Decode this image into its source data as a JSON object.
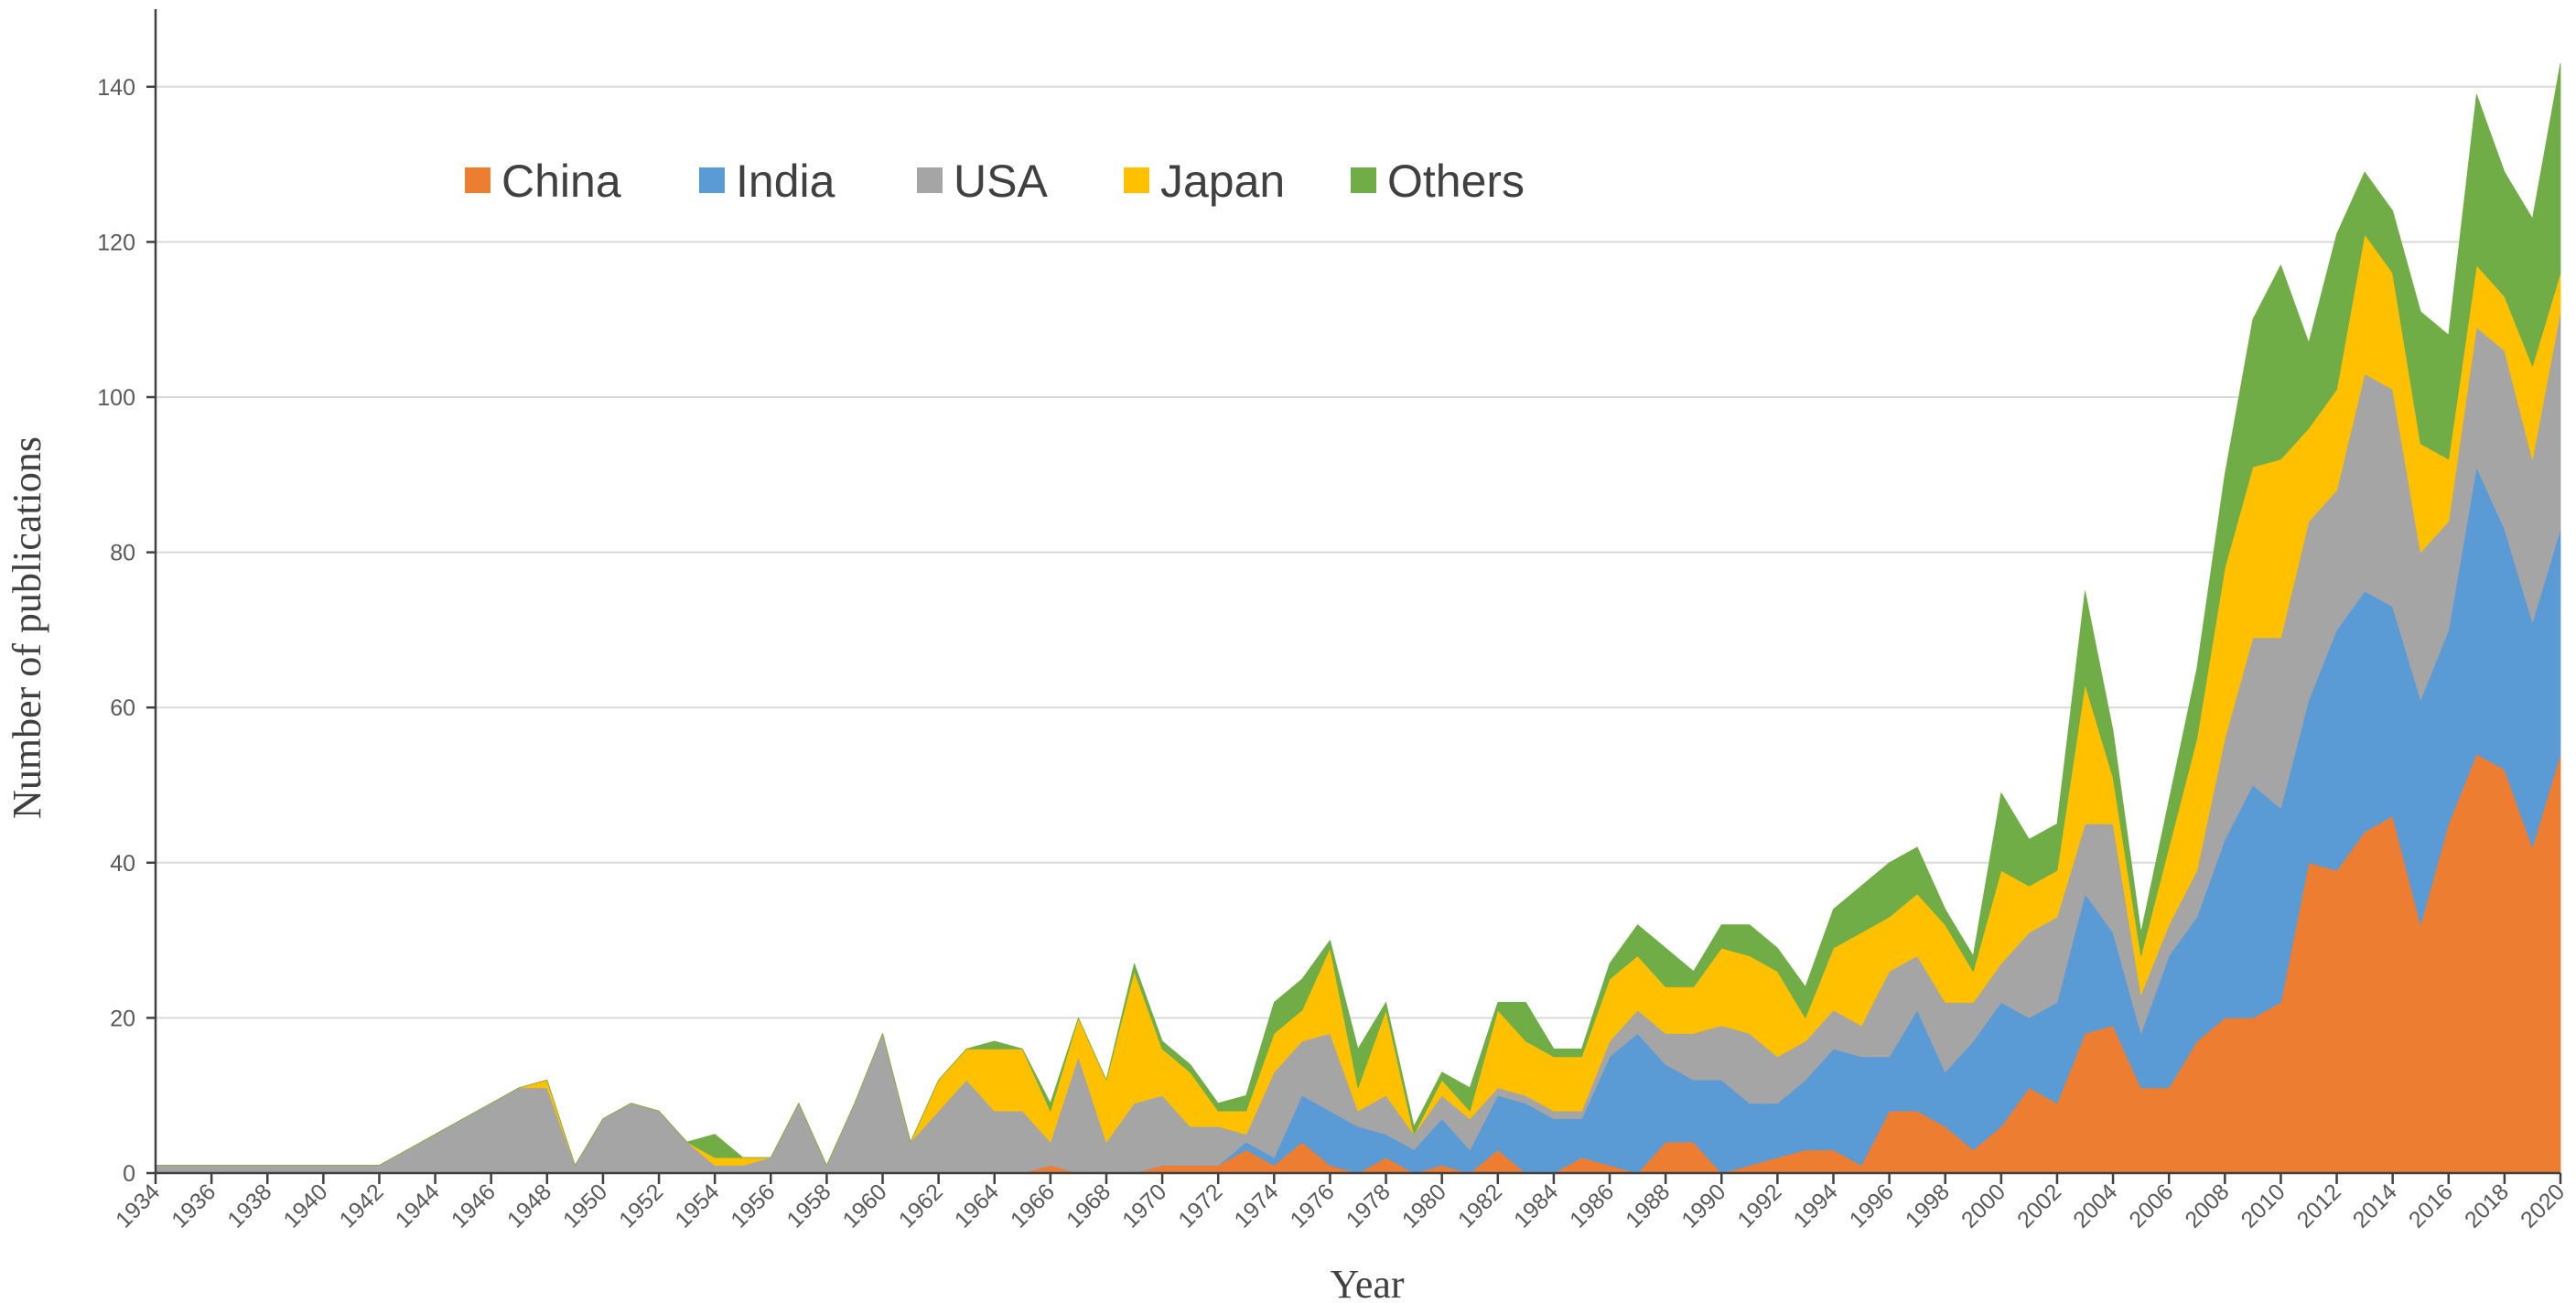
{
  "chart_data": {
    "type": "area",
    "stacked": true,
    "xlabel": "Year",
    "ylabel": "Number of publications",
    "xlim": [
      1934,
      2020
    ],
    "ylim": [
      0,
      150
    ],
    "yticks": [
      0,
      20,
      40,
      60,
      80,
      100,
      120,
      140
    ],
    "xticks": [
      1934,
      1936,
      1938,
      1940,
      1942,
      1944,
      1946,
      1948,
      1950,
      1952,
      1954,
      1956,
      1958,
      1960,
      1962,
      1964,
      1966,
      1968,
      1970,
      1972,
      1974,
      1976,
      1978,
      1980,
      1982,
      1984,
      1986,
      1988,
      1990,
      1992,
      1994,
      1996,
      1998,
      2000,
      2002,
      2004,
      2006,
      2008,
      2010,
      2012,
      2014,
      2016,
      2018,
      2020
    ],
    "grid": "horizontal",
    "legend_position": "top-left",
    "years": [
      1934,
      1935,
      1936,
      1937,
      1938,
      1939,
      1940,
      1941,
      1942,
      1943,
      1944,
      1945,
      1946,
      1947,
      1948,
      1949,
      1950,
      1951,
      1952,
      1953,
      1954,
      1955,
      1956,
      1957,
      1958,
      1959,
      1960,
      1961,
      1962,
      1963,
      1964,
      1965,
      1966,
      1967,
      1968,
      1969,
      1970,
      1971,
      1972,
      1973,
      1974,
      1975,
      1976,
      1977,
      1978,
      1979,
      1980,
      1981,
      1982,
      1983,
      1984,
      1985,
      1986,
      1987,
      1988,
      1989,
      1990,
      1991,
      1992,
      1993,
      1994,
      1995,
      1996,
      1997,
      1998,
      1999,
      2000,
      2001,
      2002,
      2003,
      2004,
      2005,
      2006,
      2007,
      2008,
      2009,
      2010,
      2011,
      2012,
      2013,
      2014,
      2015,
      2016,
      2017,
      2018,
      2019,
      2020
    ],
    "series": [
      {
        "name": "China",
        "color": "#ED7D31",
        "values": [
          0,
          0,
          0,
          0,
          0,
          0,
          0,
          0,
          0,
          0,
          0,
          0,
          0,
          0,
          0,
          0,
          0,
          0,
          0,
          0,
          0,
          0,
          0,
          0,
          0,
          0,
          0,
          0,
          0,
          0,
          0,
          0,
          1,
          0,
          0,
          0,
          1,
          1,
          1,
          3,
          1,
          4,
          1,
          0,
          2,
          0,
          1,
          0,
          3,
          0,
          0,
          2,
          1,
          0,
          4,
          4,
          0,
          1,
          2,
          3,
          3,
          1,
          8,
          8,
          6,
          3,
          6,
          11,
          9,
          18,
          19,
          11,
          11,
          17,
          20,
          20,
          22,
          40,
          39,
          44,
          46,
          32,
          45,
          54,
          52,
          42,
          54
        ]
      },
      {
        "name": "India",
        "color": "#5B9BD5",
        "values": [
          0,
          0,
          0,
          0,
          0,
          0,
          0,
          0,
          0,
          0,
          0,
          0,
          0,
          0,
          0,
          0,
          0,
          0,
          0,
          0,
          0,
          0,
          0,
          0,
          0,
          0,
          0,
          0,
          0,
          0,
          0,
          0,
          0,
          0,
          0,
          0,
          0,
          0,
          0,
          1,
          1,
          6,
          7,
          6,
          3,
          3,
          6,
          3,
          7,
          9,
          7,
          5,
          14,
          18,
          10,
          8,
          12,
          8,
          7,
          9,
          13,
          14,
          7,
          13,
          7,
          14,
          16,
          9,
          13,
          18,
          12,
          7,
          17,
          16,
          23,
          30,
          25,
          21,
          31,
          31,
          27,
          29,
          25,
          37,
          31,
          29,
          29
        ]
      },
      {
        "name": "USA",
        "color": "#A5A5A5",
        "values": [
          1,
          1,
          1,
          1,
          1,
          1,
          1,
          1,
          1,
          3,
          5,
          7,
          9,
          11,
          11,
          1,
          7,
          9,
          8,
          4,
          1,
          1,
          2,
          9,
          1,
          9,
          18,
          4,
          8,
          12,
          8,
          8,
          3,
          15,
          4,
          9,
          9,
          5,
          5,
          1,
          11,
          7,
          10,
          2,
          5,
          2,
          3,
          4,
          1,
          1,
          1,
          1,
          2,
          3,
          4,
          6,
          7,
          9,
          6,
          5,
          5,
          4,
          11,
          7,
          9,
          5,
          5,
          11,
          11,
          9,
          14,
          5,
          4,
          6,
          13,
          19,
          22,
          23,
          18,
          28,
          28,
          19,
          14,
          18,
          23,
          21,
          28
        ]
      },
      {
        "name": "Japan",
        "color": "#FFC000",
        "values": [
          0,
          0,
          0,
          0,
          0,
          0,
          0,
          0,
          0,
          0,
          0,
          0,
          0,
          0,
          1,
          0,
          0,
          0,
          0,
          0,
          1,
          1,
          0,
          0,
          0,
          0,
          0,
          0,
          4,
          4,
          8,
          8,
          4,
          5,
          8,
          17,
          6,
          7,
          2,
          3,
          5,
          4,
          11,
          3,
          11,
          0,
          2,
          1,
          10,
          7,
          7,
          7,
          8,
          7,
          6,
          6,
          10,
          10,
          11,
          3,
          8,
          12,
          7,
          8,
          10,
          4,
          12,
          6,
          6,
          18,
          6,
          5,
          10,
          17,
          22,
          22,
          23,
          12,
          13,
          18,
          15,
          14,
          8,
          8,
          7,
          12,
          5
        ]
      },
      {
        "name": "Others",
        "color": "#70AD47",
        "values": [
          0,
          0,
          0,
          0,
          0,
          0,
          0,
          0,
          0,
          0,
          0,
          0,
          0,
          0,
          0,
          0,
          0,
          0,
          0,
          0,
          3,
          0,
          0,
          0,
          0,
          0,
          0,
          0,
          0,
          0,
          1,
          0,
          1,
          0,
          0,
          1,
          1,
          1,
          1,
          2,
          4,
          4,
          1,
          5,
          1,
          1,
          1,
          3,
          1,
          5,
          1,
          1,
          2,
          4,
          5,
          2,
          3,
          4,
          3,
          4,
          5,
          6,
          7,
          6,
          2,
          2,
          10,
          6,
          6,
          12,
          6,
          3,
          6,
          9,
          12,
          19,
          25,
          11,
          20,
          8,
          8,
          17,
          16,
          22,
          16,
          19,
          27
        ]
      }
    ]
  }
}
